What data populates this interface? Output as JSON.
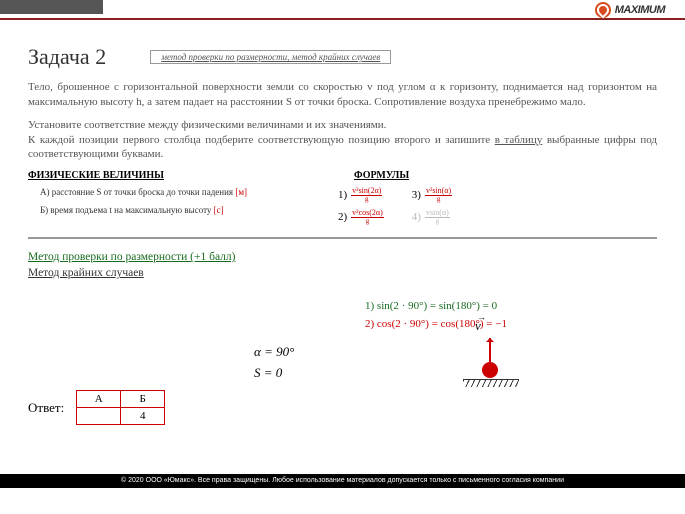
{
  "logo": "MAXIMUM",
  "task": {
    "title": "Задача 2",
    "tag": "метод проверки по размерности, метод крайних случаев"
  },
  "problem": "Тело, брошенное с горизонтальной поверхности земли со скоростью v под углом α к горизонту, поднимается над горизонтом на максимальную высоту h, а затем падает на расстоянии S от точки броска. Сопротивление воздуха пренебрежимо мало.",
  "instr_a": "Установите соответствие между физическими величинами и их значениями.",
  "instr_b": "К каждой позиции первого столбца подберите соответствующую позицию второго и запишите ",
  "instr_c": "в таблицу",
  "instr_d": " выбранные цифры под соответствующими буквами.",
  "sections": {
    "phys": "ФИЗИЧЕСКИЕ ВЕЛИЧИНЫ",
    "form": "ФОРМУЛЫ"
  },
  "phys": {
    "a_text": "А) расстояние S от точки броска до точки падения ",
    "a_unit": "[м]",
    "b_text": "Б) время подъема t на максимальную высоту ",
    "b_unit": "[с]"
  },
  "formulas": {
    "n1": "1)",
    "f1_top": "v²sin(2α)",
    "f1_bot": "g",
    "n2": "2)",
    "f2_top": "v²cos(2α)",
    "f2_bot": "g",
    "n3": "3)",
    "f3_top": "v²sin(α)",
    "f3_bot": "g",
    "n4": "4)",
    "f4_top": "vsin(α)",
    "f4_bot": "g"
  },
  "methods": {
    "m1": "Метод проверки по размерности (+1 балл)",
    "m2": "Метод крайних случаев"
  },
  "vec": "v",
  "calc": {
    "c1": "1) sin(2 · 90°) = sin(180°) = 0",
    "c2": "2) cos(2 · 90°) = cos(180°) = −1"
  },
  "cond": {
    "a": "α = 90°",
    "s": "S = 0"
  },
  "answer": {
    "label": "Ответ:",
    "h1": "А",
    "h2": "Б",
    "v1": "",
    "v2": "4"
  },
  "footer": "© 2020 ООО «Юмакс». Все права защищены. Любое использование материалов допускается только с письменного согласия компании"
}
